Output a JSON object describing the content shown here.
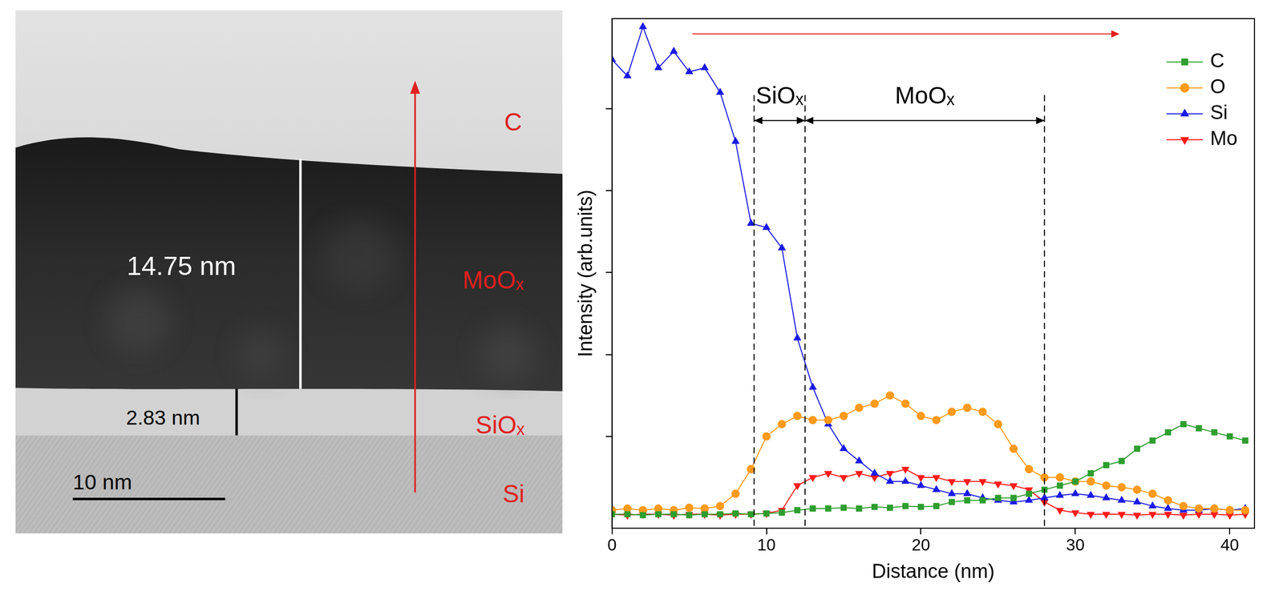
{
  "micrograph": {
    "layers": [
      "C",
      "MoOₓ",
      "SiOₓ",
      "Si"
    ],
    "thickness_labels": [
      "14.75 nm",
      "2.83 nm"
    ],
    "scale_bar": "10 nm"
  },
  "chart_data": {
    "type": "line",
    "xlabel": "Distance (nm)",
    "ylabel": "Intensity (arb.units)",
    "x": [
      0,
      1,
      2,
      3,
      4,
      5,
      6,
      7,
      8,
      9,
      10,
      11,
      12,
      13,
      14,
      15,
      16,
      17,
      18,
      19,
      20,
      21,
      22,
      23,
      24,
      25,
      26,
      27,
      28,
      29,
      30,
      31,
      32,
      33,
      34,
      35,
      36,
      37,
      38,
      39,
      40,
      41
    ],
    "series": [
      {
        "name": "C",
        "color": "#2e9e2e",
        "marker": "square",
        "values": [
          0.05,
          0.05,
          0.04,
          0.05,
          0.05,
          0.04,
          0.05,
          0.05,
          0.06,
          0.05,
          0.06,
          0.07,
          0.1,
          0.12,
          0.12,
          0.13,
          0.12,
          0.14,
          0.13,
          0.15,
          0.14,
          0.15,
          0.2,
          0.22,
          0.22,
          0.25,
          0.25,
          0.3,
          0.35,
          0.4,
          0.45,
          0.55,
          0.65,
          0.7,
          0.85,
          0.95,
          1.05,
          1.15,
          1.1,
          1.05,
          1.0,
          0.95
        ]
      },
      {
        "name": "O",
        "color": "#ff9a1a",
        "marker": "circle",
        "values": [
          0.1,
          0.12,
          0.1,
          0.12,
          0.1,
          0.13,
          0.12,
          0.15,
          0.3,
          0.6,
          1.0,
          1.15,
          1.25,
          1.2,
          1.2,
          1.25,
          1.35,
          1.4,
          1.5,
          1.4,
          1.25,
          1.2,
          1.3,
          1.35,
          1.3,
          1.15,
          0.85,
          0.6,
          0.5,
          0.5,
          0.45,
          0.45,
          0.4,
          0.38,
          0.35,
          0.3,
          0.22,
          0.15,
          0.12,
          0.12,
          0.1,
          0.1
        ]
      },
      {
        "name": "Si",
        "color": "#1a1ae6",
        "marker": "triangle",
        "values": [
          5.6,
          5.4,
          6.0,
          5.5,
          5.7,
          5.45,
          5.5,
          5.2,
          4.6,
          3.6,
          3.55,
          3.3,
          2.2,
          1.6,
          1.15,
          0.85,
          0.7,
          0.55,
          0.45,
          0.45,
          0.4,
          0.35,
          0.3,
          0.3,
          0.25,
          0.22,
          0.2,
          0.22,
          0.25,
          0.28,
          0.3,
          0.28,
          0.25,
          0.22,
          0.2,
          0.15,
          0.12,
          0.1,
          0.1,
          0.12,
          0.1,
          0.12
        ]
      },
      {
        "name": "Mo",
        "color": "#ff1a1a",
        "marker": "triangle_down",
        "values": [
          0.05,
          0.04,
          0.05,
          0.05,
          0.04,
          0.05,
          0.05,
          0.04,
          0.05,
          0.05,
          0.06,
          0.1,
          0.4,
          0.5,
          0.55,
          0.5,
          0.55,
          0.5,
          0.55,
          0.6,
          0.5,
          0.5,
          0.45,
          0.45,
          0.45,
          0.42,
          0.4,
          0.35,
          0.2,
          0.1,
          0.07,
          0.05,
          0.05,
          0.05,
          0.04,
          0.05,
          0.05,
          0.04,
          0.05,
          0.05,
          0.04,
          0.05
        ]
      }
    ],
    "xlim": [
      0,
      41.6
    ],
    "xticks": [
      0,
      10,
      20,
      30,
      40
    ],
    "ylim": [
      -0.12,
      6.1
    ],
    "yticks": [
      1,
      2,
      3,
      4,
      5
    ],
    "tick_labels": "x",
    "grid": false,
    "legend": "upper right",
    "boundaries": [
      9.2,
      12.5,
      28
    ],
    "regions": [
      {
        "label": "SiOₓ",
        "from": 9.2,
        "to": 12.5
      },
      {
        "label": "MoOₓ",
        "from": 12.5,
        "to": 28
      }
    ]
  }
}
